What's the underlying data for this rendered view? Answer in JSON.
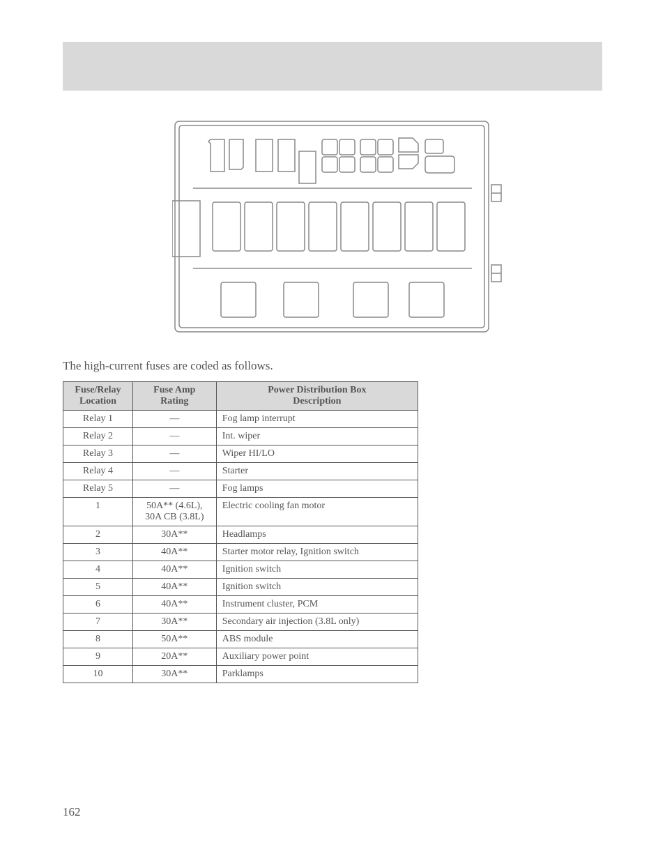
{
  "caption": "The high-current fuses are coded as follows.",
  "table": {
    "headers": {
      "col1_line1": "Fuse/Relay",
      "col1_line2": "Location",
      "col2_line1": "Fuse Amp",
      "col2_line2": "Rating",
      "col3_line1": "Power Distribution Box",
      "col3_line2": "Description"
    },
    "rows": [
      {
        "loc": "Relay 1",
        "amp": "—",
        "desc": "Fog lamp interrupt"
      },
      {
        "loc": "Relay 2",
        "amp": "—",
        "desc": "Int. wiper"
      },
      {
        "loc": "Relay 3",
        "amp": "—",
        "desc": "Wiper HI/LO"
      },
      {
        "loc": "Relay 4",
        "amp": "—",
        "desc": "Starter"
      },
      {
        "loc": "Relay 5",
        "amp": "—",
        "desc": "Fog lamps"
      },
      {
        "loc": "1",
        "amp": "50A** (4.6L), 30A CB (3.8L)",
        "desc": "Electric cooling fan motor"
      },
      {
        "loc": "2",
        "amp": "30A**",
        "desc": "Headlamps"
      },
      {
        "loc": "3",
        "amp": "40A**",
        "desc": "Starter motor relay, Ignition switch"
      },
      {
        "loc": "4",
        "amp": "40A**",
        "desc": "Ignition switch"
      },
      {
        "loc": "5",
        "amp": "40A**",
        "desc": "Ignition switch"
      },
      {
        "loc": "6",
        "amp": "40A**",
        "desc": "Instrument cluster, PCM"
      },
      {
        "loc": "7",
        "amp": "30A**",
        "desc": "Secondary air injection (3.8L only)"
      },
      {
        "loc": "8",
        "amp": "50A**",
        "desc": "ABS module"
      },
      {
        "loc": "9",
        "amp": "20A**",
        "desc": "Auxiliary power point"
      },
      {
        "loc": "10",
        "amp": "30A**",
        "desc": "Parklamps"
      }
    ]
  },
  "page_number": "162",
  "diagram": {
    "stroke": "#888888",
    "stroke_width": 1.5,
    "outer_width": 460,
    "outer_height": 310
  },
  "colors": {
    "header_bg": "#d9d9d9",
    "text": "#555555",
    "border": "#555555",
    "background": "#ffffff"
  }
}
